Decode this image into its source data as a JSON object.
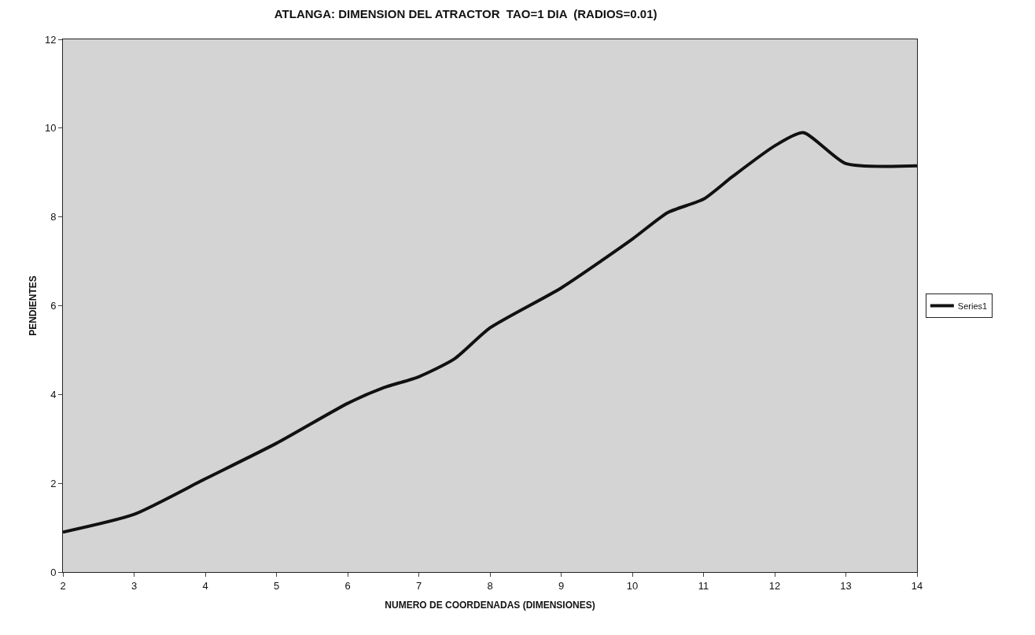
{
  "chart_data": {
    "type": "line",
    "title": "ATLANGA: DIMENSION DEL ATRACTOR  TAO=1 DIA  (RADIOS=0.01)",
    "xlabel": "NUMERO DE COORDENADAS (DIMENSIONES)",
    "ylabel": "PENDIENTES",
    "x": [
      2,
      3,
      4,
      5,
      6,
      6.5,
      7,
      7.5,
      8,
      9,
      10,
      10.5,
      11,
      11.4,
      12,
      12.4,
      13,
      14
    ],
    "series": [
      {
        "name": "Series1",
        "color": "#111111",
        "values": [
          0.9,
          1.3,
          2.1,
          2.9,
          3.8,
          4.15,
          4.4,
          4.8,
          5.5,
          6.4,
          7.5,
          8.1,
          8.4,
          8.9,
          9.6,
          9.9,
          9.2,
          9.15
        ]
      }
    ],
    "xlim": [
      2,
      14
    ],
    "xticks": [
      2,
      3,
      4,
      5,
      6,
      7,
      8,
      9,
      10,
      11,
      12,
      13,
      14
    ],
    "ylim": [
      0,
      12
    ],
    "yticks": [
      0,
      2,
      4,
      6,
      8,
      10,
      12
    ],
    "grid": false,
    "legend": "right",
    "marker": "none",
    "line_style": "solid"
  }
}
